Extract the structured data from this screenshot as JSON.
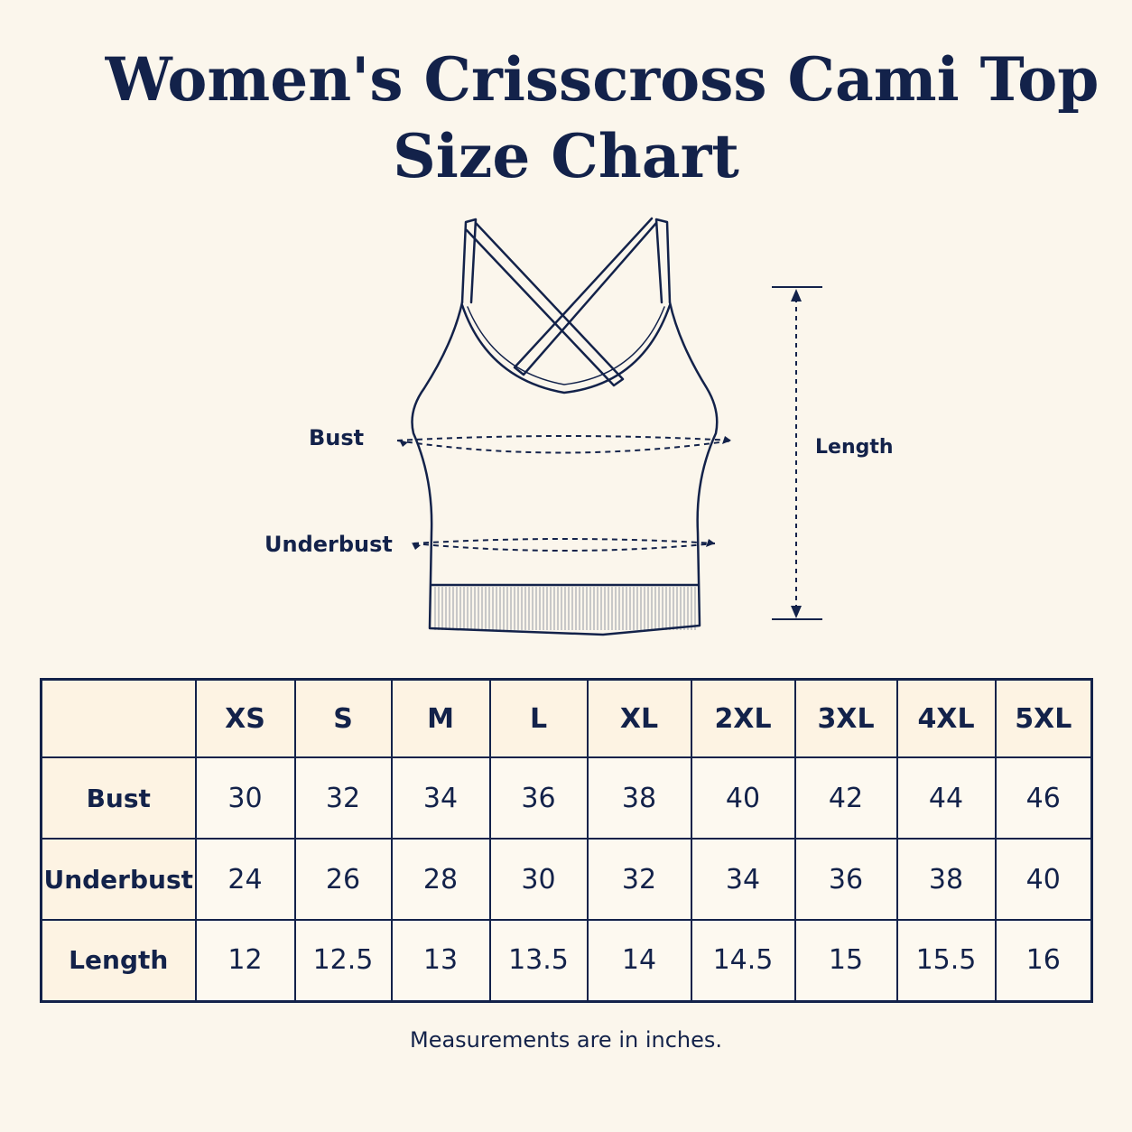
{
  "title": {
    "line1": "Women's Crisscross Cami Top",
    "line2": "Size Chart"
  },
  "diagram": {
    "bust_label": "Bust",
    "underbust_label": "Underbust",
    "length_label": "Length"
  },
  "table": {
    "corner": "",
    "sizes": [
      "XS",
      "S",
      "M",
      "L",
      "XL",
      "2XL",
      "3XL",
      "4XL",
      "5XL"
    ],
    "rows": [
      {
        "label": "Bust",
        "values": [
          "30",
          "32",
          "34",
          "36",
          "38",
          "40",
          "42",
          "44",
          "46"
        ]
      },
      {
        "label": "Underbust",
        "values": [
          "24",
          "26",
          "28",
          "30",
          "32",
          "34",
          "36",
          "38",
          "40"
        ]
      },
      {
        "label": "Length",
        "values": [
          "12",
          "12.5",
          "13",
          "13.5",
          "14",
          "14.5",
          "15",
          "15.5",
          "16"
        ]
      }
    ]
  },
  "note": "Measurements are in inches.",
  "colors": {
    "ink": "#13224a",
    "background": "#fbf6ec",
    "header_fill": "#fdf3e3"
  }
}
